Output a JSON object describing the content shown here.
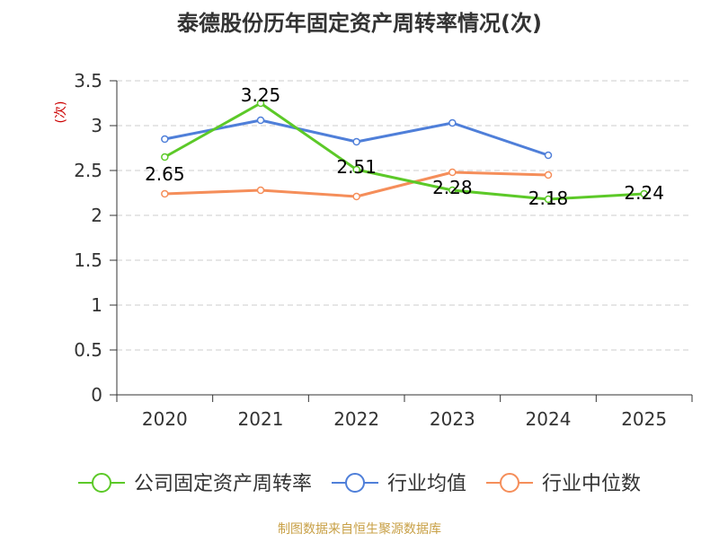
{
  "chart_data": {
    "type": "line",
    "title": "泰德股份历年固定资产周转率情况(次)",
    "ylabel": "(次)",
    "xlabel": "",
    "categories": [
      "2020",
      "2021",
      "2022",
      "2023",
      "2024",
      "2025"
    ],
    "ylim": [
      0,
      3.5
    ],
    "yticks": [
      0,
      0.5,
      1,
      1.5,
      2,
      2.5,
      3,
      3.5
    ],
    "ytick_labels": [
      "0",
      "0.5",
      "1",
      "1.5",
      "2",
      "2.5",
      "3",
      "3.5"
    ],
    "grid": true,
    "legend_position": "bottom",
    "series": [
      {
        "name": "公司固定资产周转率",
        "color": "#5cc928",
        "values": [
          2.65,
          3.25,
          2.51,
          2.28,
          2.18,
          2.24
        ],
        "data_labels": [
          "2.65",
          "3.25",
          "2.51",
          "2.28",
          "2.18",
          "2.24"
        ]
      },
      {
        "name": "行业均值",
        "color": "#4f7fd9",
        "values": [
          2.85,
          3.06,
          2.82,
          3.03,
          2.67,
          null
        ]
      },
      {
        "name": "行业中位数",
        "color": "#f58e5a",
        "values": [
          2.24,
          2.28,
          2.21,
          2.48,
          2.45,
          null
        ]
      }
    ],
    "source": "制图数据来自恒生聚源数据库",
    "title_color": "#333333",
    "ylabel_color": "#cc0000",
    "source_color": "#c8a046"
  }
}
